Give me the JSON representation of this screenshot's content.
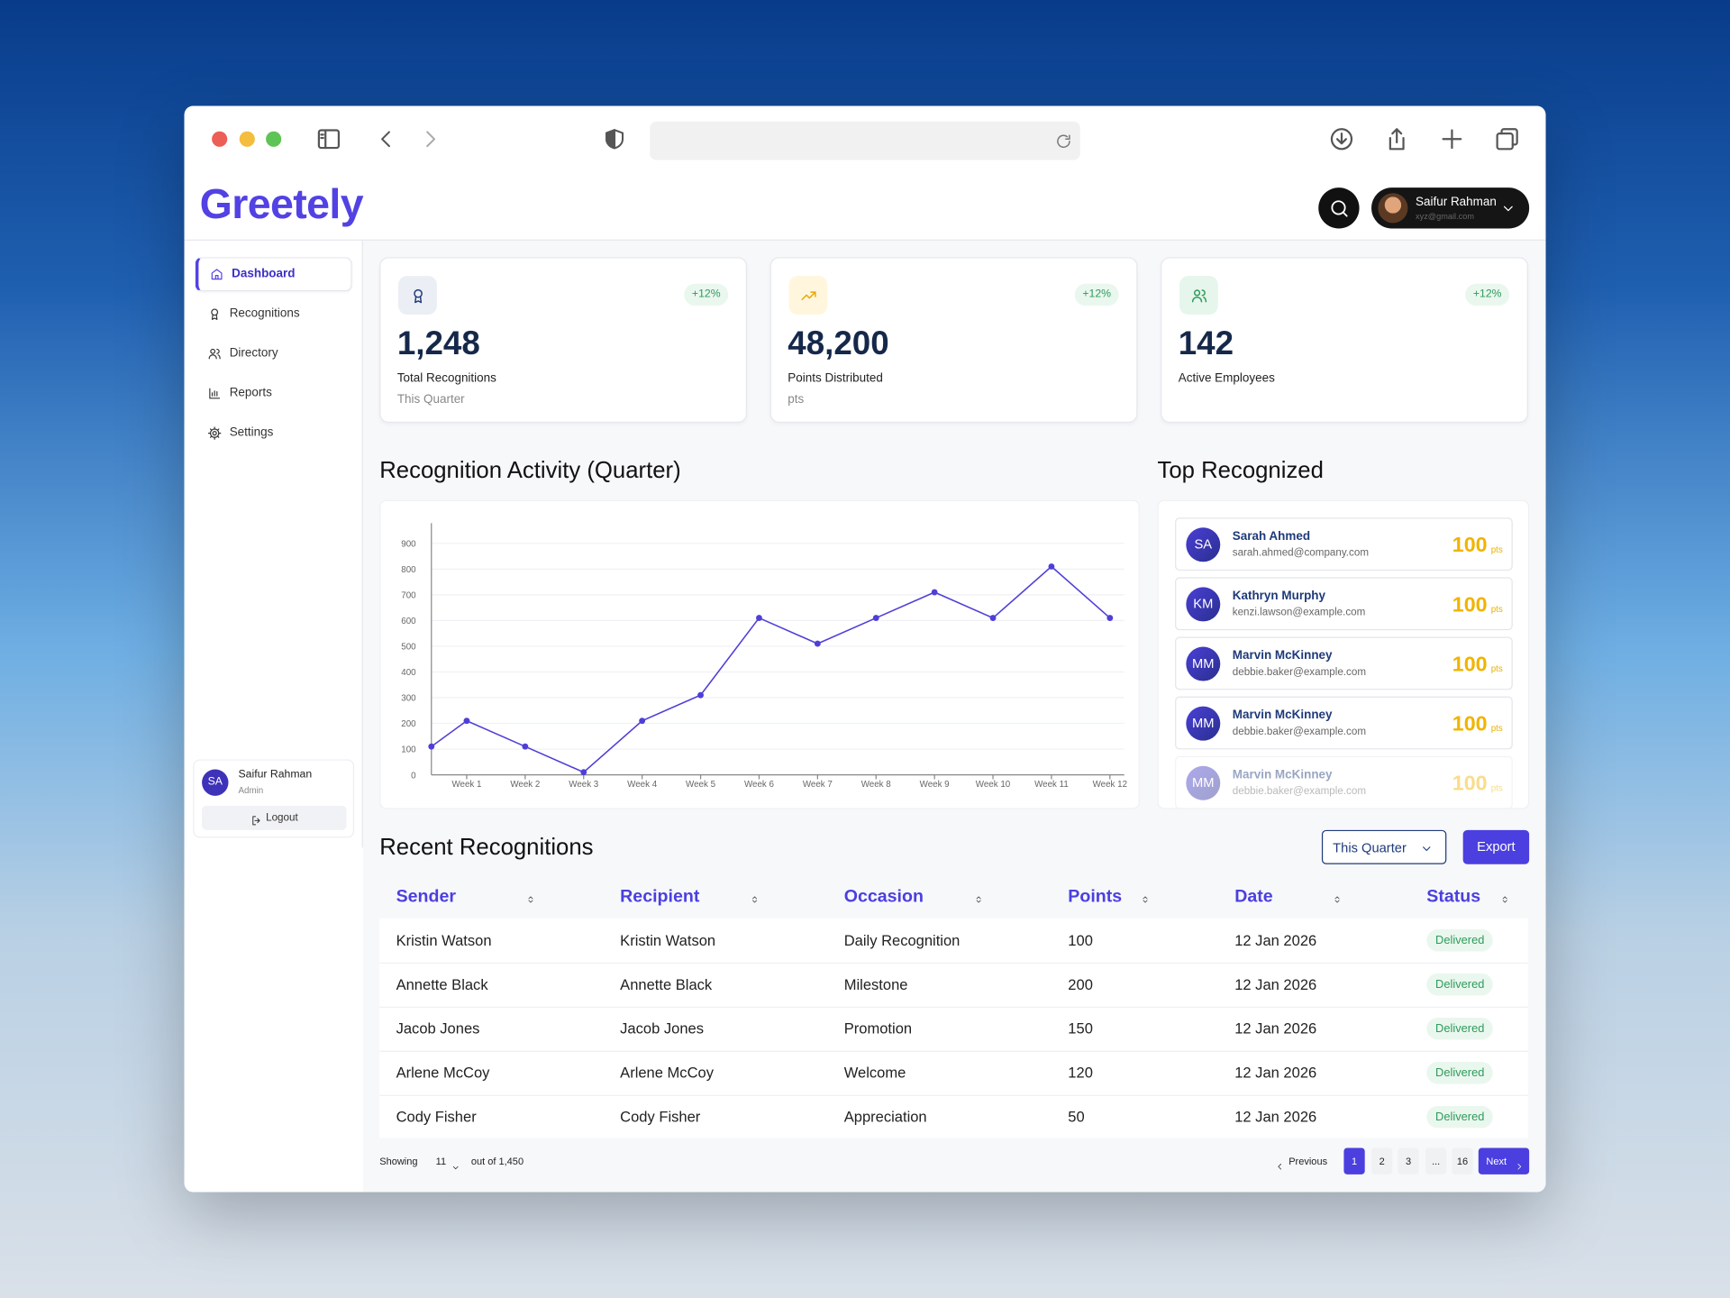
{
  "brand": "Greetely",
  "user": {
    "name": "Saifur Rahman",
    "email": "xyz@gmail.com"
  },
  "nav": [
    "Dashboard",
    "Recognitions",
    "Directory",
    "Reports",
    "Settings"
  ],
  "sidebar_user": {
    "initials": "SA",
    "name": "Saifur Rahman",
    "role": "Admin",
    "logout": "Logout"
  },
  "stats": [
    {
      "change": "+12%",
      "value": "1,248",
      "label": "Total Recognitions",
      "sub": "This Quarter"
    },
    {
      "change": "+12%",
      "value": "48,200",
      "label": "Points Distributed",
      "sub": "pts"
    },
    {
      "change": "+12%",
      "value": "142",
      "label": "Active Employees"
    }
  ],
  "chart_data": {
    "type": "line",
    "title": "Recognition Activity (Quarter)",
    "categories": [
      null,
      "Week 1",
      "Week 2",
      "Week 3",
      "Week 4",
      "Week 5",
      "Week 6",
      "Week 7",
      "Week 8",
      "Week 9",
      "Week 10",
      "Week 11",
      "Week 12"
    ],
    "values": [
      110,
      210,
      110,
      10,
      210,
      310,
      610,
      510,
      610,
      710,
      610,
      810,
      610
    ],
    "color": "#4f3fd8",
    "ylim": [
      0,
      1000
    ],
    "yticks": [
      0,
      100,
      200,
      300,
      400,
      500,
      600,
      700,
      800,
      900
    ],
    "grid": true
  },
  "top": {
    "title": "Top Recognized",
    "items": [
      {
        "initials": "SA",
        "name": "Sarah Ahmed",
        "email": "sarah.ahmed@company.com",
        "points": 100,
        "unit": "pts"
      },
      {
        "initials": "KM",
        "name": "Kathryn Murphy",
        "email": "kenzi.lawson@example.com",
        "points": 100,
        "unit": "pts"
      },
      {
        "initials": "MM",
        "name": "Marvin McKinney",
        "email": "debbie.baker@example.com",
        "points": 100,
        "unit": "pts"
      },
      {
        "initials": "MM",
        "name": "Marvin McKinney",
        "email": "debbie.baker@example.com",
        "points": 100,
        "unit": "pts"
      },
      {
        "initials": "MM",
        "name": "Marvin McKinney",
        "email": "debbie.baker@example.com",
        "points": 100,
        "unit": "pts"
      }
    ]
  },
  "recent": {
    "title": "Recent Recognitions",
    "filter": "This Quarter",
    "export": "Export",
    "columns": [
      "Sender",
      "Recipient",
      "Occasion",
      "Points",
      "Date",
      "Status"
    ],
    "rows": [
      [
        "Kristin Watson",
        "Kristin Watson",
        "Daily Recognition",
        100,
        "12 Jan 2026",
        "Delivered"
      ],
      [
        "Annette Black",
        "Annette Black",
        "Milestone",
        200,
        "12 Jan 2026",
        "Delivered"
      ],
      [
        "Jacob Jones",
        "Jacob Jones",
        "Promotion",
        150,
        "12 Jan 2026",
        "Delivered"
      ],
      [
        "Arlene McCoy",
        "Arlene McCoy",
        "Welcome",
        120,
        "12 Jan 2026",
        "Delivered"
      ],
      [
        "Cody Fisher",
        "Cody Fisher",
        "Appreciation",
        50,
        "12 Jan 2026",
        "Delivered"
      ]
    ]
  },
  "pagination": {
    "showing": "Showing",
    "per_page": "11",
    "total": "out of 1,450",
    "previous": "Previous",
    "pages": [
      "1",
      "2",
      "3",
      "...",
      "16"
    ],
    "next": "Next"
  }
}
